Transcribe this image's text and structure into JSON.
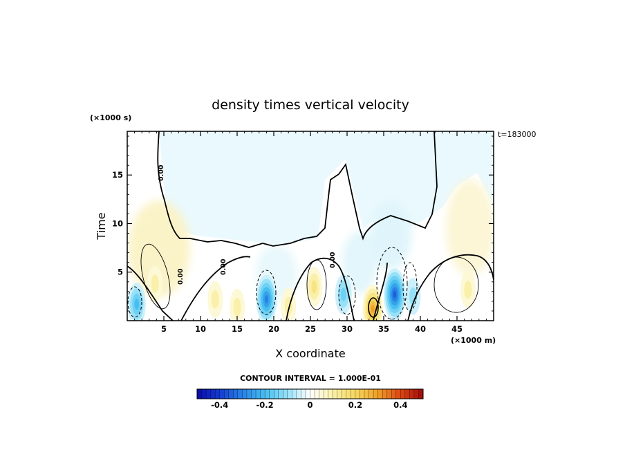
{
  "chart_data": {
    "type": "heatmap",
    "title": "density times vertical velocity",
    "xlabel": "X coordinate",
    "ylabel": "Time",
    "x_unit": "(×1000 m)",
    "y_unit": "(×1000 s)",
    "time_stamp": "t=183000",
    "xlim": [
      0,
      50
    ],
    "ylim": [
      0,
      19.5
    ],
    "x_ticks": [
      5,
      10,
      15,
      20,
      25,
      30,
      35,
      40,
      45
    ],
    "x_tick_labels": [
      "5",
      "10",
      "15",
      "20",
      "25",
      "30",
      "35",
      "40",
      "45"
    ],
    "y_ticks": [
      5,
      10,
      15
    ],
    "y_tick_labels": [
      "5",
      "10",
      "15"
    ],
    "contour_interval_text": "CONTOUR INTERVAL = 1.000E-01",
    "contour_labels": [
      "0.00",
      "0.00",
      "0.00",
      "0.00"
    ],
    "colorbar": {
      "range": [
        -0.5,
        0.5
      ],
      "tick_values": [
        -0.4,
        -0.2,
        0,
        0.2,
        0.4
      ],
      "tick_labels": [
        "-0.4",
        "-0.2",
        "0",
        "0.2",
        "0.4"
      ]
    },
    "features": [
      {
        "x": 1.3,
        "t": 1.7,
        "value": -0.2
      },
      {
        "x": 3.8,
        "t": 3.8,
        "value": 0.1
      },
      {
        "x": 12.0,
        "t": 2.2,
        "value": 0.1
      },
      {
        "x": 15.0,
        "t": 1.4,
        "value": 0.1
      },
      {
        "x": 19.0,
        "t": 2.2,
        "value": -0.3
      },
      {
        "x": 22.0,
        "t": 1.5,
        "value": 0.1
      },
      {
        "x": 25.5,
        "t": 3.5,
        "value": 0.15
      },
      {
        "x": 29.5,
        "t": 2.7,
        "value": -0.15
      },
      {
        "x": 33.5,
        "t": 1.2,
        "value": 0.3
      },
      {
        "x": 36.5,
        "t": 2.7,
        "value": -0.35
      },
      {
        "x": 39.0,
        "t": 2.5,
        "value": -0.1
      },
      {
        "x": 46.5,
        "t": 3.2,
        "value": 0.1
      }
    ]
  }
}
